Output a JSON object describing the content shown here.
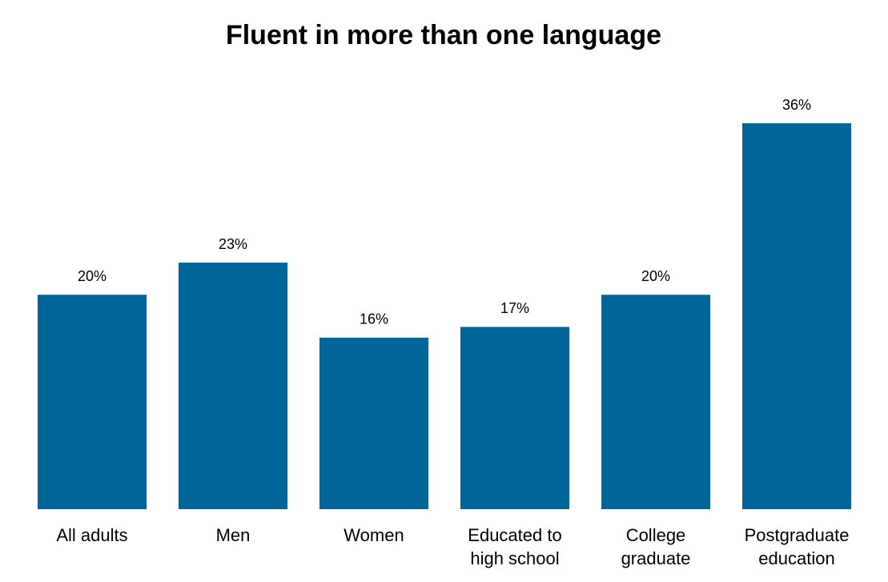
{
  "chart_data": {
    "type": "bar",
    "title": "Fluent in more than one language",
    "categories": [
      "All adults",
      "Men",
      "Women",
      "Educated to high school",
      "College graduate",
      "Postgraduate education"
    ],
    "values": [
      20,
      23,
      16,
      17,
      20,
      36
    ],
    "value_labels": [
      "20%",
      "23%",
      "16%",
      "17%",
      "20%",
      "36%"
    ],
    "color": "#006699"
  }
}
